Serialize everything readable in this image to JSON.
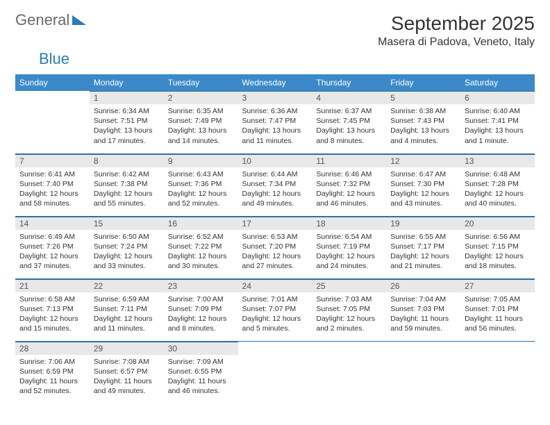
{
  "brand": {
    "word1": "General",
    "word2": "Blue"
  },
  "title": "September 2025",
  "location": "Masera di Padova, Veneto, Italy",
  "colors": {
    "header_bg": "#3b89c9",
    "header_text": "#ffffff",
    "daynum_bg": "#e8e8e8",
    "rule": "#2f6fa3",
    "page_bg": "#ffffff",
    "text": "#333333",
    "brand_gray": "#6a6a6a",
    "brand_blue": "#2b7bbf"
  },
  "typography": {
    "title_fontsize": 28,
    "location_fontsize": 16,
    "dayheader_fontsize": 12,
    "daynum_fontsize": 12,
    "body_fontsize": 10.5
  },
  "calendar": {
    "type": "table",
    "day_headers": [
      "Sunday",
      "Monday",
      "Tuesday",
      "Wednesday",
      "Thursday",
      "Friday",
      "Saturday"
    ],
    "weeks": [
      [
        {
          "empty": true
        },
        {
          "num": "1",
          "sunrise": "6:34 AM",
          "sunset": "7:51 PM",
          "daylight": "13 hours and 17 minutes."
        },
        {
          "num": "2",
          "sunrise": "6:35 AM",
          "sunset": "7:49 PM",
          "daylight": "13 hours and 14 minutes."
        },
        {
          "num": "3",
          "sunrise": "6:36 AM",
          "sunset": "7:47 PM",
          "daylight": "13 hours and 11 minutes."
        },
        {
          "num": "4",
          "sunrise": "6:37 AM",
          "sunset": "7:45 PM",
          "daylight": "13 hours and 8 minutes."
        },
        {
          "num": "5",
          "sunrise": "6:38 AM",
          "sunset": "7:43 PM",
          "daylight": "13 hours and 4 minutes."
        },
        {
          "num": "6",
          "sunrise": "6:40 AM",
          "sunset": "7:41 PM",
          "daylight": "13 hours and 1 minute."
        }
      ],
      [
        {
          "num": "7",
          "sunrise": "6:41 AM",
          "sunset": "7:40 PM",
          "daylight": "12 hours and 58 minutes."
        },
        {
          "num": "8",
          "sunrise": "6:42 AM",
          "sunset": "7:38 PM",
          "daylight": "12 hours and 55 minutes."
        },
        {
          "num": "9",
          "sunrise": "6:43 AM",
          "sunset": "7:36 PM",
          "daylight": "12 hours and 52 minutes."
        },
        {
          "num": "10",
          "sunrise": "6:44 AM",
          "sunset": "7:34 PM",
          "daylight": "12 hours and 49 minutes."
        },
        {
          "num": "11",
          "sunrise": "6:46 AM",
          "sunset": "7:32 PM",
          "daylight": "12 hours and 46 minutes."
        },
        {
          "num": "12",
          "sunrise": "6:47 AM",
          "sunset": "7:30 PM",
          "daylight": "12 hours and 43 minutes."
        },
        {
          "num": "13",
          "sunrise": "6:48 AM",
          "sunset": "7:28 PM",
          "daylight": "12 hours and 40 minutes."
        }
      ],
      [
        {
          "num": "14",
          "sunrise": "6:49 AM",
          "sunset": "7:26 PM",
          "daylight": "12 hours and 37 minutes."
        },
        {
          "num": "15",
          "sunrise": "6:50 AM",
          "sunset": "7:24 PM",
          "daylight": "12 hours and 33 minutes."
        },
        {
          "num": "16",
          "sunrise": "6:52 AM",
          "sunset": "7:22 PM",
          "daylight": "12 hours and 30 minutes."
        },
        {
          "num": "17",
          "sunrise": "6:53 AM",
          "sunset": "7:20 PM",
          "daylight": "12 hours and 27 minutes."
        },
        {
          "num": "18",
          "sunrise": "6:54 AM",
          "sunset": "7:19 PM",
          "daylight": "12 hours and 24 minutes."
        },
        {
          "num": "19",
          "sunrise": "6:55 AM",
          "sunset": "7:17 PM",
          "daylight": "12 hours and 21 minutes."
        },
        {
          "num": "20",
          "sunrise": "6:56 AM",
          "sunset": "7:15 PM",
          "daylight": "12 hours and 18 minutes."
        }
      ],
      [
        {
          "num": "21",
          "sunrise": "6:58 AM",
          "sunset": "7:13 PM",
          "daylight": "12 hours and 15 minutes."
        },
        {
          "num": "22",
          "sunrise": "6:59 AM",
          "sunset": "7:11 PM",
          "daylight": "12 hours and 11 minutes."
        },
        {
          "num": "23",
          "sunrise": "7:00 AM",
          "sunset": "7:09 PM",
          "daylight": "12 hours and 8 minutes."
        },
        {
          "num": "24",
          "sunrise": "7:01 AM",
          "sunset": "7:07 PM",
          "daylight": "12 hours and 5 minutes."
        },
        {
          "num": "25",
          "sunrise": "7:03 AM",
          "sunset": "7:05 PM",
          "daylight": "12 hours and 2 minutes."
        },
        {
          "num": "26",
          "sunrise": "7:04 AM",
          "sunset": "7:03 PM",
          "daylight": "11 hours and 59 minutes."
        },
        {
          "num": "27",
          "sunrise": "7:05 AM",
          "sunset": "7:01 PM",
          "daylight": "11 hours and 56 minutes."
        }
      ],
      [
        {
          "num": "28",
          "sunrise": "7:06 AM",
          "sunset": "6:59 PM",
          "daylight": "11 hours and 52 minutes."
        },
        {
          "num": "29",
          "sunrise": "7:08 AM",
          "sunset": "6:57 PM",
          "daylight": "11 hours and 49 minutes."
        },
        {
          "num": "30",
          "sunrise": "7:09 AM",
          "sunset": "6:55 PM",
          "daylight": "11 hours and 46 minutes."
        },
        {
          "empty": true
        },
        {
          "empty": true
        },
        {
          "empty": true
        },
        {
          "empty": true
        }
      ]
    ]
  },
  "labels": {
    "sunrise": "Sunrise:",
    "sunset": "Sunset:",
    "daylight": "Daylight:"
  }
}
